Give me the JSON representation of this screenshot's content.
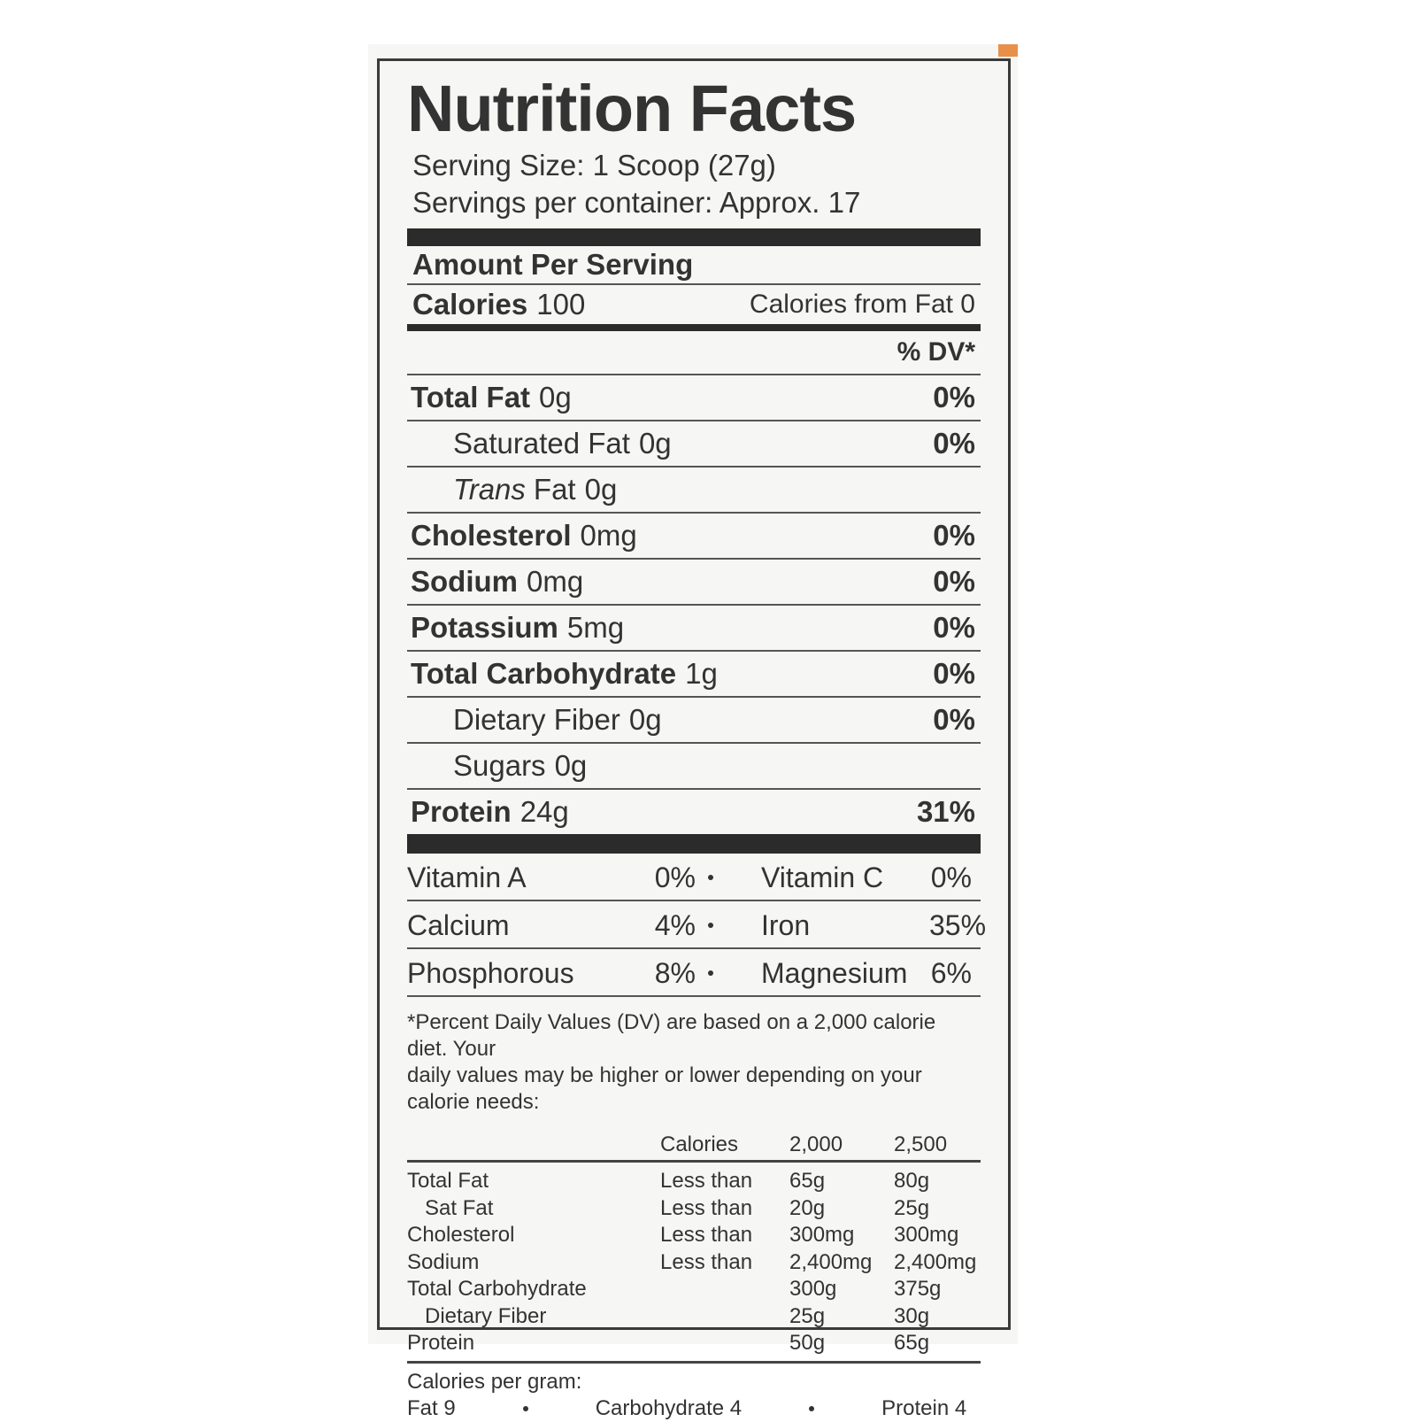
{
  "title": "Nutrition Facts",
  "serving_size": "Serving Size: 1 Scoop (27g)",
  "servings_per_container": "Servings per container: Approx. 17",
  "amount_per_serving": "Amount Per Serving",
  "calories": {
    "label": "Calories",
    "value": "100",
    "from_fat": "Calories from Fat 0"
  },
  "dv_header": "% DV*",
  "nutrients": [
    {
      "name": "Total Fat",
      "amount": "0g",
      "dv": "0%",
      "bold": true
    },
    {
      "name": "Saturated Fat",
      "amount": "0g",
      "dv": "0%",
      "indent": true
    },
    {
      "italic": "Trans",
      "name": "Fat",
      "amount": "0g",
      "indent": true
    },
    {
      "name": "Cholesterol",
      "amount": "0mg",
      "dv": "0%",
      "bold": true
    },
    {
      "name": "Sodium",
      "amount": "0mg",
      "dv": "0%",
      "bold": true
    },
    {
      "name": "Potassium",
      "amount": "5mg",
      "dv": "0%",
      "bold": true
    },
    {
      "name": "Total Carbohydrate",
      "amount": "1g",
      "dv": "0%",
      "bold": true
    },
    {
      "name": "Dietary Fiber",
      "amount": "0g",
      "dv": "0%",
      "indent": true
    },
    {
      "name": "Sugars",
      "amount": "0g",
      "indent": true
    },
    {
      "name": "Protein",
      "amount": "24g",
      "dv": "31%",
      "bold": true
    }
  ],
  "vitamins": [
    [
      {
        "name": "Vitamin A",
        "dv": "0%"
      },
      {
        "name": "Vitamin C",
        "dv": "0%"
      }
    ],
    [
      {
        "name": "Calcium",
        "dv": "4%"
      },
      {
        "name": "Iron",
        "dv": "35%"
      }
    ],
    [
      {
        "name": "Phosphorous",
        "dv": "8%"
      },
      {
        "name": "Magnesium",
        "dv": "6%"
      }
    ]
  ],
  "footnote": [
    "*Percent Daily Values (DV) are based on a 2,000 calorie diet.  Your",
    "daily values may be higher or lower depending on your calorie needs:"
  ],
  "dv_table": {
    "header": {
      "label": "Calories",
      "columns": [
        "2,000",
        "2,500"
      ]
    },
    "rows": [
      {
        "name": "Total Fat",
        "qualifier": "Less than",
        "values": [
          "65g",
          "80g"
        ]
      },
      {
        "name": "Sat Fat",
        "qualifier": "Less than",
        "values": [
          "20g",
          "25g"
        ],
        "indent": true
      },
      {
        "name": "Cholesterol",
        "qualifier": "Less than",
        "values": [
          "300mg",
          "300mg"
        ]
      },
      {
        "name": "Sodium",
        "qualifier": "Less than",
        "values": [
          "2,400mg",
          "2,400mg"
        ]
      },
      {
        "name": "Total Carbohydrate",
        "values": [
          "300g",
          "375g"
        ]
      },
      {
        "name": "Dietary Fiber",
        "values": [
          "25g",
          "30g"
        ],
        "indent": true
      },
      {
        "name": "Protein",
        "values": [
          "50g",
          "65g"
        ]
      }
    ]
  },
  "calories_per_gram": {
    "label": "Calories per gram:",
    "items": [
      "Fat 9",
      "Carbohydrate 4",
      "Protein 4"
    ]
  }
}
